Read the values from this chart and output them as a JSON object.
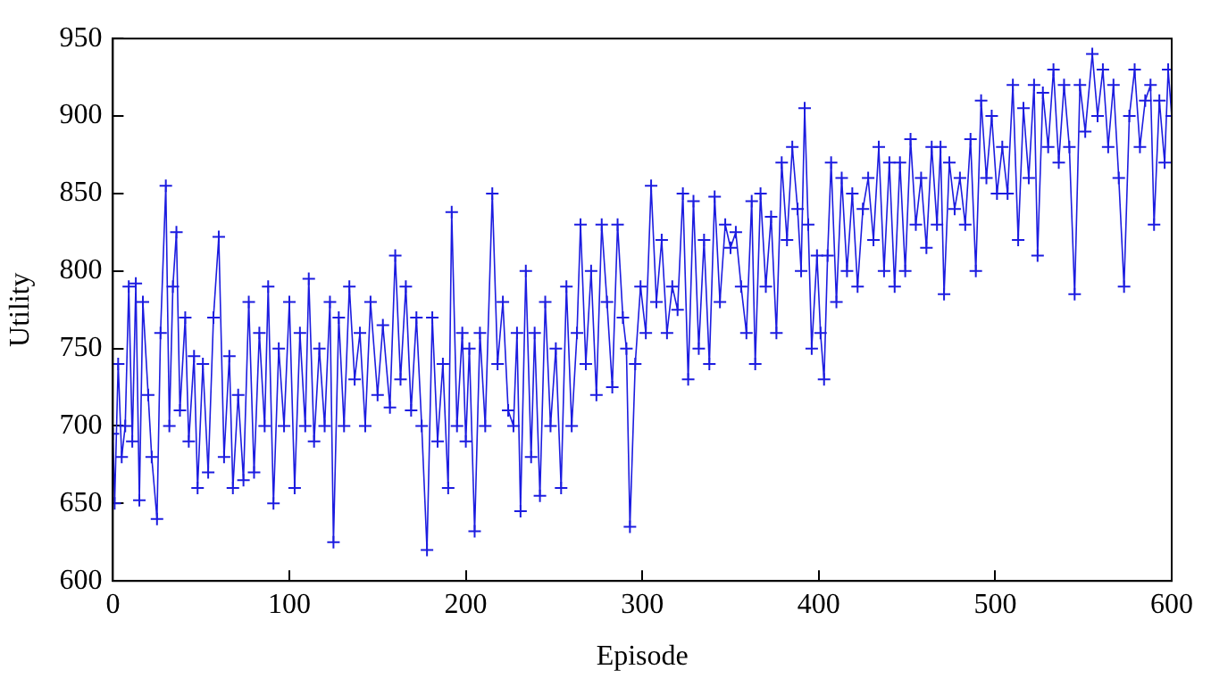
{
  "chart_data": {
    "type": "line",
    "xlabel": "Episode",
    "ylabel": "Utility",
    "marker": "cross",
    "line_style": "solid",
    "grid": false,
    "legend": false,
    "xlim": [
      0,
      600
    ],
    "xticks": [
      0,
      100,
      200,
      300,
      400,
      500,
      600
    ],
    "ylim": [
      600,
      950
    ],
    "yticks": [
      600,
      650,
      700,
      750,
      800,
      850,
      900,
      950
    ],
    "series": [
      {
        "color": "#1c1ce0",
        "x": [
          0,
          1,
          3,
          5,
          7,
          9,
          11,
          13,
          15,
          17,
          20,
          22,
          25,
          27,
          30,
          32,
          34,
          36,
          38,
          41,
          43,
          46,
          48,
          51,
          54,
          57,
          60,
          63,
          66,
          68,
          71,
          74,
          77,
          80,
          83,
          86,
          88,
          91,
          94,
          97,
          100,
          103,
          106,
          109,
          111,
          114,
          117,
          120,
          123,
          125,
          128,
          131,
          134,
          137,
          140,
          143,
          146,
          150,
          153,
          157,
          160,
          163,
          166,
          169,
          172,
          175,
          178,
          181,
          184,
          187,
          190,
          192,
          195,
          198,
          200,
          202,
          205,
          208,
          211,
          215,
          218,
          221,
          224,
          227,
          229,
          231,
          234,
          237,
          239,
          242,
          245,
          248,
          251,
          254,
          257,
          260,
          263,
          265,
          268,
          271,
          274,
          277,
          280,
          283,
          286,
          289,
          291,
          293,
          296,
          299,
          302,
          305,
          308,
          311,
          314,
          317,
          320,
          323,
          326,
          329,
          332,
          335,
          338,
          341,
          344,
          347,
          350,
          353,
          356,
          359,
          362,
          364,
          367,
          370,
          373,
          376,
          379,
          382,
          385,
          388,
          390,
          392,
          394,
          396,
          399,
          401,
          403,
          405,
          407,
          410,
          413,
          416,
          419,
          422,
          425,
          428,
          431,
          434,
          437,
          440,
          443,
          446,
          449,
          452,
          455,
          458,
          461,
          464,
          467,
          469,
          471,
          474,
          477,
          480,
          483,
          486,
          489,
          492,
          495,
          498,
          501,
          504,
          507,
          510,
          513,
          516,
          519,
          522,
          524,
          527,
          530,
          533,
          536,
          539,
          542,
          545,
          548,
          551,
          555,
          558,
          561,
          564,
          567,
          570,
          573,
          576,
          579,
          582,
          585,
          588,
          590,
          593,
          596,
          598,
          600
        ],
        "values": [
          695,
          650,
          740,
          680,
          700,
          790,
          690,
          792,
          652,
          780,
          720,
          680,
          640,
          760,
          855,
          700,
          790,
          825,
          710,
          770,
          690,
          745,
          660,
          740,
          670,
          770,
          822,
          680,
          745,
          660,
          720,
          665,
          780,
          670,
          760,
          700,
          790,
          650,
          750,
          700,
          780,
          660,
          760,
          700,
          795,
          690,
          750,
          700,
          780,
          625,
          770,
          700,
          790,
          730,
          760,
          700,
          780,
          720,
          765,
          712,
          810,
          730,
          790,
          710,
          770,
          700,
          620,
          770,
          690,
          740,
          660,
          838,
          700,
          760,
          690,
          750,
          632,
          760,
          700,
          850,
          740,
          780,
          710,
          700,
          760,
          645,
          800,
          680,
          760,
          655,
          780,
          700,
          750,
          660,
          790,
          700,
          760,
          830,
          740,
          800,
          720,
          830,
          780,
          725,
          830,
          770,
          750,
          635,
          740,
          790,
          760,
          855,
          780,
          820,
          760,
          790,
          775,
          850,
          730,
          845,
          750,
          820,
          740,
          848,
          780,
          830,
          815,
          825,
          790,
          760,
          845,
          740,
          850,
          790,
          835,
          760,
          870,
          820,
          880,
          840,
          800,
          905,
          830,
          750,
          810,
          760,
          730,
          810,
          870,
          780,
          860,
          800,
          850,
          790,
          840,
          860,
          820,
          880,
          800,
          870,
          790,
          870,
          800,
          885,
          830,
          860,
          815,
          880,
          830,
          880,
          785,
          870,
          840,
          860,
          830,
          885,
          800,
          910,
          860,
          900,
          850,
          880,
          850,
          920,
          820,
          905,
          860,
          920,
          810,
          915,
          880,
          930,
          870,
          920,
          880,
          785,
          920,
          890,
          940,
          900,
          930,
          880,
          920,
          860,
          790,
          900,
          930,
          880,
          910,
          920,
          830,
          910,
          870,
          930,
          900
        ]
      }
    ]
  }
}
